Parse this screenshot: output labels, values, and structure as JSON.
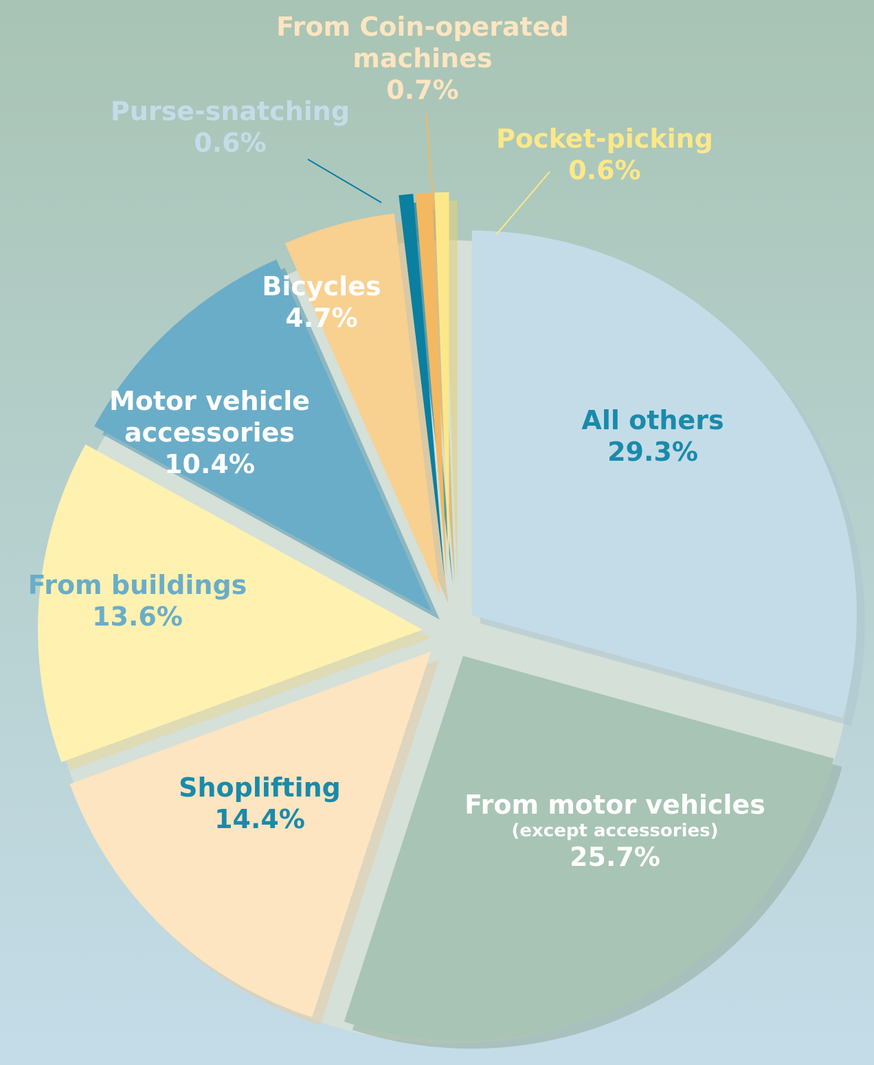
{
  "chart_data": {
    "type": "pie",
    "categories": [
      "All others",
      "From motor vehicles",
      "Shoplifting",
      "From buildings",
      "Motor vehicle accessories",
      "Bicycles",
      "Purse-snatching",
      "From Coin-operated machines",
      "Pocket-picking"
    ],
    "values": [
      29.3,
      25.7,
      14.4,
      13.6,
      10.4,
      4.7,
      0.6,
      0.7,
      0.6
    ],
    "value_labels": [
      "29.3%",
      "25.7%",
      "14.4%",
      "13.6%",
      "10.4%",
      "4.7%",
      "0.6%",
      "0.7%",
      "0.6%"
    ],
    "colors": [
      "#c4dce8",
      "#a8c4b4",
      "#fce5c0",
      "#fff1b0",
      "#6aadc8",
      "#f8d090",
      "#0a7fa0",
      "#f4b860",
      "#fce88a"
    ],
    "label_colors": [
      "#1a8aaa",
      "#ffffff",
      "#1a8aaa",
      "#6aadc8",
      "#ffffff",
      "#ffffff",
      "#c4dce8",
      "#fce5c0",
      "#fce88a"
    ],
    "annotations": [
      {
        "text": "(except accessories)"
      }
    ]
  }
}
